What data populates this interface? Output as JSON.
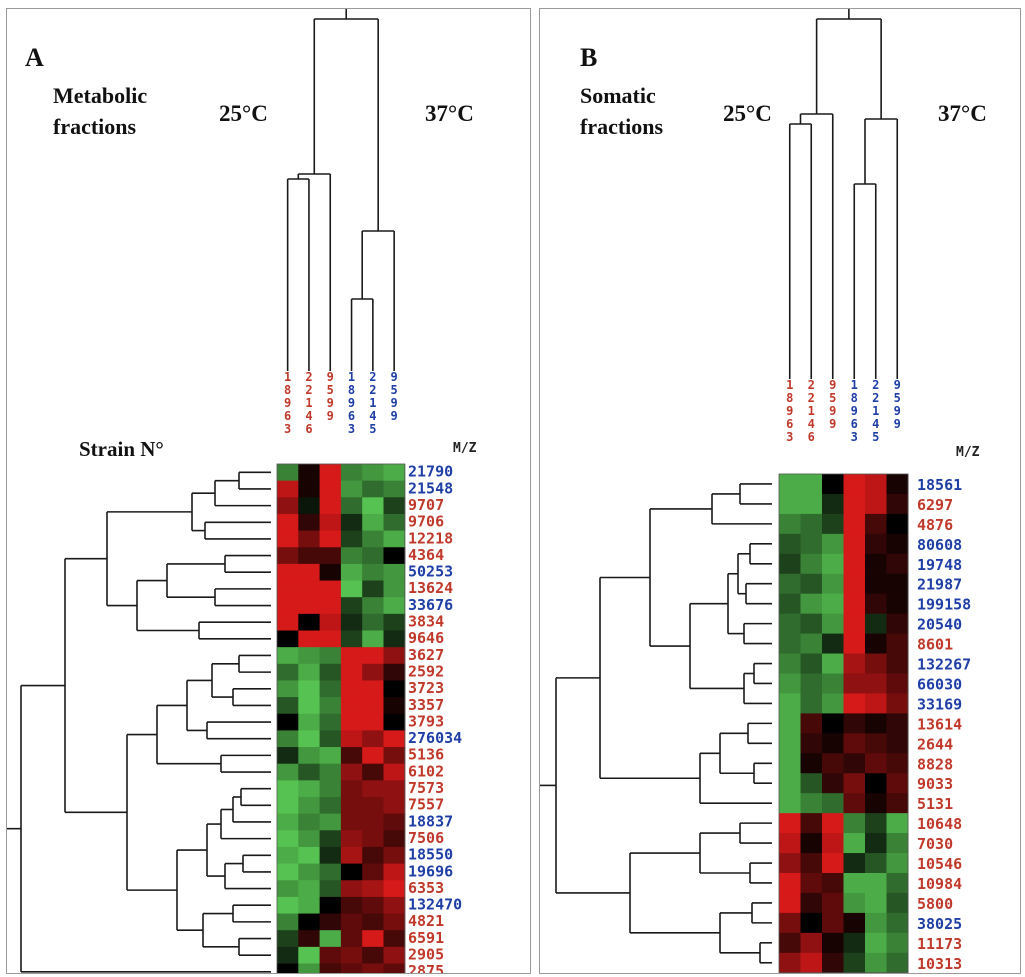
{
  "colors": {
    "red": "#c0392b",
    "blue": "#1f3fa6",
    "hm_red": "#ee1c1c",
    "hm_green": "#5fd85a",
    "hm_black": "#000000"
  },
  "panel_a": {
    "letter": "A",
    "desc_line1": "Metabolic",
    "desc_line2": "fractions",
    "temp_left": "25°C",
    "temp_right": "37°C",
    "strain_label": "Strain N°",
    "mz_label": "M/Z",
    "columns": [
      {
        "digits": [
          "1",
          "8",
          "9",
          "6",
          "3"
        ],
        "group": "25"
      },
      {
        "digits": [
          "2",
          "2",
          "1",
          "4",
          "6"
        ],
        "group": "25"
      },
      {
        "digits": [
          "9",
          "5",
          "9",
          "9"
        ],
        "group": "25"
      },
      {
        "digits": [
          "1",
          "8",
          "9",
          "6",
          "3"
        ],
        "group": "37"
      },
      {
        "digits": [
          "2",
          "2",
          "1",
          "4",
          "5"
        ],
        "group": "37"
      },
      {
        "digits": [
          "9",
          "5",
          "9",
          "9"
        ],
        "group": "37"
      }
    ],
    "rows": [
      {
        "mz": "21790",
        "color": "blue",
        "values": [
          -0.6,
          0.1,
          0.9,
          -0.6,
          -0.7,
          -0.8
        ]
      },
      {
        "mz": "21548",
        "color": "blue",
        "values": [
          0.8,
          0.1,
          0.9,
          -0.7,
          -0.5,
          -0.6
        ]
      },
      {
        "mz": "9707",
        "color": "red",
        "values": [
          0.6,
          -0.1,
          0.9,
          -0.5,
          -0.9,
          -0.3
        ]
      },
      {
        "mz": "9706",
        "color": "red",
        "values": [
          0.9,
          0.2,
          0.8,
          -0.2,
          -0.8,
          -0.5
        ]
      },
      {
        "mz": "12218",
        "color": "red",
        "values": [
          0.9,
          0.5,
          0.9,
          -0.3,
          -0.6,
          -0.8
        ]
      },
      {
        "mz": "4364",
        "color": "red",
        "values": [
          0.5,
          0.3,
          0.3,
          -0.6,
          -0.5,
          0.0
        ]
      },
      {
        "mz": "50253",
        "color": "blue",
        "values": [
          0.9,
          0.9,
          0.1,
          -0.8,
          -0.6,
          -0.7
        ]
      },
      {
        "mz": "13624",
        "color": "red",
        "values": [
          0.9,
          0.9,
          0.9,
          -0.9,
          -0.3,
          -0.7
        ]
      },
      {
        "mz": "33676",
        "color": "blue",
        "values": [
          0.9,
          0.9,
          0.9,
          -0.3,
          -0.6,
          -0.8
        ]
      },
      {
        "mz": "3834",
        "color": "red",
        "values": [
          0.9,
          0.0,
          0.8,
          -0.2,
          -0.5,
          -0.3
        ]
      },
      {
        "mz": "9646",
        "color": "red",
        "values": [
          0.0,
          0.9,
          0.9,
          -0.3,
          -0.8,
          -0.2
        ]
      },
      {
        "mz": "3627",
        "color": "red",
        "values": [
          -0.8,
          -0.7,
          -0.6,
          0.9,
          0.9,
          0.6
        ]
      },
      {
        "mz": "2592",
        "color": "red",
        "values": [
          -0.5,
          -0.8,
          -0.4,
          0.9,
          0.6,
          0.2
        ]
      },
      {
        "mz": "3723",
        "color": "red",
        "values": [
          -0.7,
          -0.9,
          -0.5,
          0.9,
          0.9,
          0.0
        ]
      },
      {
        "mz": "3357",
        "color": "red",
        "values": [
          -0.4,
          -0.9,
          -0.6,
          0.9,
          0.9,
          0.1
        ]
      },
      {
        "mz": "3793",
        "color": "red",
        "values": [
          0.0,
          -0.8,
          -0.5,
          0.9,
          0.9,
          0.0
        ]
      },
      {
        "mz": "276034",
        "color": "blue",
        "values": [
          -0.6,
          -0.9,
          -0.4,
          0.8,
          0.6,
          0.9
        ]
      },
      {
        "mz": "5136",
        "color": "red",
        "values": [
          -0.2,
          -0.7,
          -0.8,
          0.3,
          0.9,
          0.5
        ]
      },
      {
        "mz": "6102",
        "color": "red",
        "values": [
          -0.7,
          -0.4,
          -0.6,
          0.6,
          0.3,
          0.8
        ]
      },
      {
        "mz": "7573",
        "color": "red",
        "values": [
          -0.9,
          -0.8,
          -0.6,
          0.5,
          0.6,
          0.6
        ]
      },
      {
        "mz": "7557",
        "color": "red",
        "values": [
          -0.9,
          -0.7,
          -0.5,
          0.5,
          0.5,
          0.6
        ]
      },
      {
        "mz": "18837",
        "color": "blue",
        "values": [
          -0.8,
          -0.6,
          -0.7,
          0.5,
          0.5,
          0.4
        ]
      },
      {
        "mz": "7506",
        "color": "red",
        "values": [
          -0.9,
          -0.7,
          -0.3,
          0.6,
          0.5,
          0.3
        ]
      },
      {
        "mz": "18550",
        "color": "blue",
        "values": [
          -0.8,
          -0.9,
          -0.2,
          0.7,
          0.3,
          0.5
        ]
      },
      {
        "mz": "19696",
        "color": "blue",
        "values": [
          -0.9,
          -0.7,
          -0.5,
          0.0,
          0.4,
          0.8
        ]
      },
      {
        "mz": "6353",
        "color": "red",
        "values": [
          -0.7,
          -0.8,
          -0.4,
          0.6,
          0.7,
          0.9
        ]
      },
      {
        "mz": "132470",
        "color": "blue",
        "values": [
          -0.9,
          -0.8,
          0.0,
          0.3,
          0.4,
          0.6
        ]
      },
      {
        "mz": "4821",
        "color": "red",
        "values": [
          -0.6,
          0.0,
          0.2,
          0.4,
          0.3,
          0.5
        ]
      },
      {
        "mz": "6591",
        "color": "red",
        "values": [
          -0.3,
          0.2,
          -0.8,
          0.4,
          0.9,
          0.3
        ]
      },
      {
        "mz": "2905",
        "color": "red",
        "values": [
          -0.2,
          -0.9,
          0.4,
          0.5,
          0.3,
          0.6
        ]
      },
      {
        "mz": "2875",
        "color": "red",
        "values": [
          0.0,
          -0.7,
          0.3,
          0.4,
          0.5,
          0.4
        ]
      }
    ]
  },
  "panel_b": {
    "letter": "B",
    "desc_line1": "Somatic",
    "desc_line2": "fractions",
    "temp_left": "25°C",
    "temp_right": "37°C",
    "mz_label": "M/Z",
    "columns": [
      {
        "digits": [
          "1",
          "8",
          "9",
          "6",
          "3"
        ],
        "group": "25"
      },
      {
        "digits": [
          "2",
          "2",
          "1",
          "4",
          "6"
        ],
        "group": "25"
      },
      {
        "digits": [
          "9",
          "5",
          "9",
          "9"
        ],
        "group": "25"
      },
      {
        "digits": [
          "1",
          "8",
          "9",
          "6",
          "3"
        ],
        "group": "37"
      },
      {
        "digits": [
          "2",
          "2",
          "1",
          "4",
          "5"
        ],
        "group": "37"
      },
      {
        "digits": [
          "9",
          "5",
          "9",
          "9"
        ],
        "group": "37"
      }
    ],
    "rows": [
      {
        "mz": "18561",
        "color": "blue",
        "values": [
          -0.8,
          -0.8,
          0.0,
          0.9,
          0.8,
          0.1
        ]
      },
      {
        "mz": "6297",
        "color": "red",
        "values": [
          -0.8,
          -0.8,
          -0.2,
          0.9,
          0.8,
          0.2
        ]
      },
      {
        "mz": "4876",
        "color": "red",
        "values": [
          -0.6,
          -0.5,
          -0.3,
          0.9,
          0.3,
          0.0
        ]
      },
      {
        "mz": "80608",
        "color": "blue",
        "values": [
          -0.4,
          -0.5,
          -0.7,
          0.9,
          0.2,
          0.1
        ]
      },
      {
        "mz": "19748",
        "color": "blue",
        "values": [
          -0.3,
          -0.6,
          -0.8,
          0.9,
          0.1,
          0.2
        ]
      },
      {
        "mz": "21987",
        "color": "blue",
        "values": [
          -0.5,
          -0.4,
          -0.7,
          0.9,
          0.1,
          0.1
        ]
      },
      {
        "mz": "199158",
        "color": "blue",
        "values": [
          -0.4,
          -0.7,
          -0.8,
          0.9,
          0.2,
          0.1
        ]
      },
      {
        "mz": "20540",
        "color": "blue",
        "values": [
          -0.5,
          -0.4,
          -0.7,
          0.9,
          -0.2,
          0.2
        ]
      },
      {
        "mz": "8601",
        "color": "red",
        "values": [
          -0.5,
          -0.6,
          -0.2,
          0.9,
          0.1,
          0.3
        ]
      },
      {
        "mz": "132267",
        "color": "blue",
        "values": [
          -0.6,
          -0.4,
          -0.8,
          0.7,
          0.5,
          0.3
        ]
      },
      {
        "mz": "66030",
        "color": "blue",
        "values": [
          -0.7,
          -0.5,
          -0.6,
          0.6,
          0.6,
          0.4
        ]
      },
      {
        "mz": "33169",
        "color": "blue",
        "values": [
          -0.8,
          -0.5,
          -0.7,
          0.9,
          0.8,
          0.5
        ]
      },
      {
        "mz": "13614",
        "color": "red",
        "values": [
          -0.8,
          0.3,
          0.0,
          0.2,
          0.1,
          0.2
        ]
      },
      {
        "mz": "2644",
        "color": "red",
        "values": [
          -0.8,
          0.2,
          0.1,
          0.4,
          0.3,
          0.2
        ]
      },
      {
        "mz": "8828",
        "color": "red",
        "values": [
          -0.8,
          0.1,
          0.3,
          0.2,
          0.4,
          0.3
        ]
      },
      {
        "mz": "9033",
        "color": "red",
        "values": [
          -0.8,
          -0.4,
          0.2,
          0.5,
          0.0,
          0.4
        ]
      },
      {
        "mz": "5131",
        "color": "red",
        "values": [
          -0.8,
          -0.6,
          -0.5,
          0.4,
          0.1,
          0.3
        ]
      },
      {
        "mz": "10648",
        "color": "red",
        "values": [
          0.9,
          0.3,
          0.9,
          -0.6,
          -0.3,
          -0.8
        ]
      },
      {
        "mz": "7030",
        "color": "red",
        "values": [
          0.8,
          0.1,
          0.8,
          -0.8,
          -0.2,
          -0.6
        ]
      },
      {
        "mz": "10546",
        "color": "red",
        "values": [
          0.6,
          0.3,
          0.9,
          -0.2,
          -0.4,
          -0.7
        ]
      },
      {
        "mz": "10984",
        "color": "red",
        "values": [
          0.9,
          0.4,
          0.3,
          -0.8,
          -0.8,
          -0.5
        ]
      },
      {
        "mz": "5800",
        "color": "red",
        "values": [
          0.9,
          0.2,
          0.4,
          -0.7,
          -0.8,
          -0.4
        ]
      },
      {
        "mz": "38025",
        "color": "blue",
        "values": [
          0.5,
          0.0,
          0.4,
          0.1,
          -0.7,
          -0.5
        ]
      },
      {
        "mz": "11173",
        "color": "red",
        "values": [
          0.3,
          0.6,
          0.1,
          -0.2,
          -0.8,
          -0.6
        ]
      },
      {
        "mz": "10313",
        "color": "red",
        "values": [
          0.6,
          0.8,
          0.2,
          -0.3,
          -0.7,
          -0.5
        ]
      }
    ]
  }
}
